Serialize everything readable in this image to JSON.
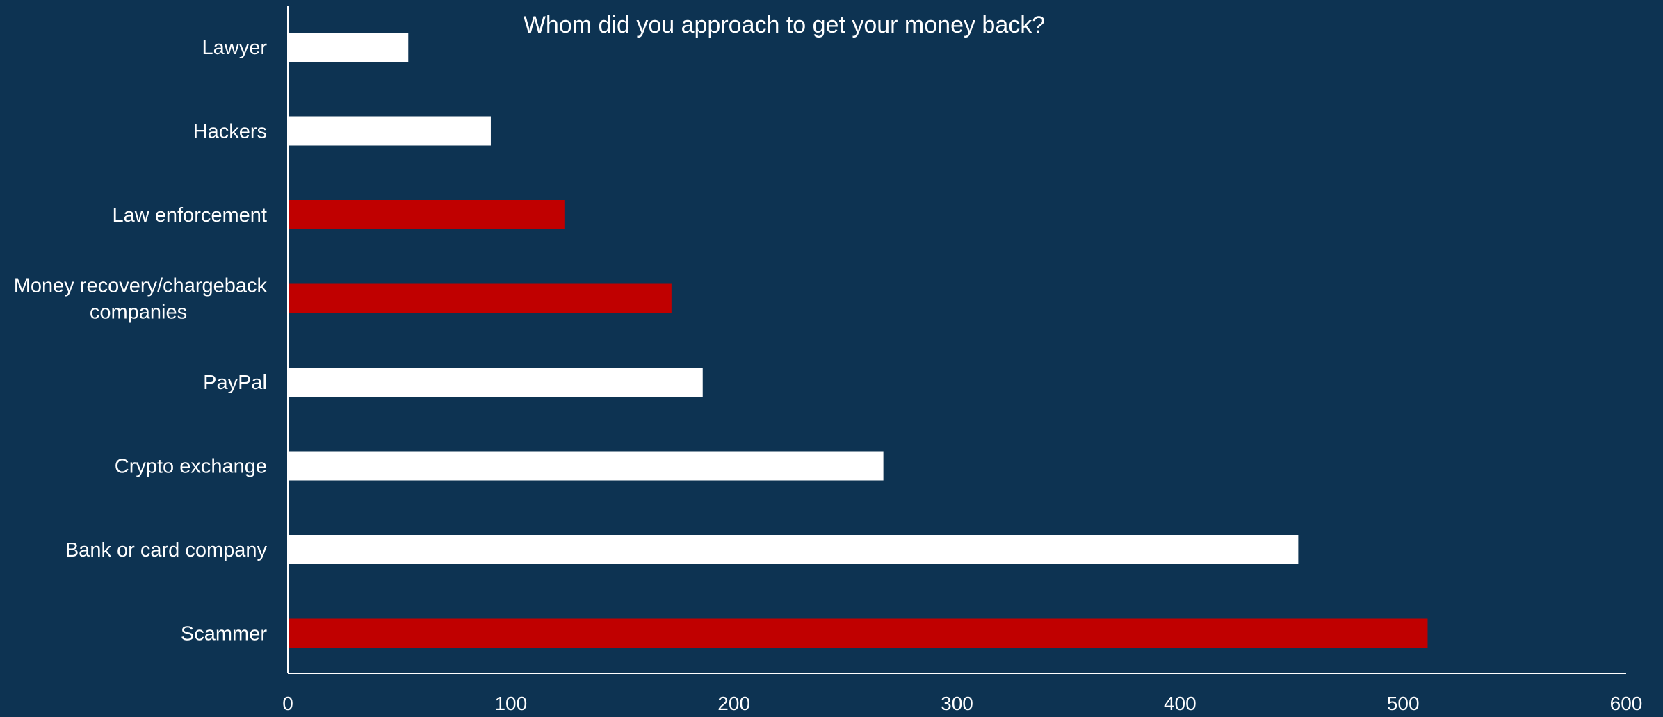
{
  "chart_data": {
    "type": "bar",
    "orientation": "horizontal",
    "title": "Whom did you approach to get your money back?",
    "xlabel": "",
    "ylabel": "",
    "xlim": [
      0,
      600
    ],
    "xticks": [
      "0",
      "100",
      "200",
      "300",
      "400",
      "500",
      "600"
    ],
    "grid": false,
    "legend": "none",
    "background_color": "#0d3352",
    "categories": [
      {
        "label_lines": [
          "Lawyer"
        ],
        "value": 54,
        "color": "#ffffff"
      },
      {
        "label_lines": [
          "Hackers"
        ],
        "value": 91,
        "color": "#ffffff"
      },
      {
        "label_lines": [
          "Law enforcement"
        ],
        "value": 124,
        "color": "#c00000"
      },
      {
        "label_lines": [
          "Money recovery/chargeback",
          "companies"
        ],
        "value": 172,
        "color": "#c00000"
      },
      {
        "label_lines": [
          "PayPal"
        ],
        "value": 186,
        "color": "#ffffff"
      },
      {
        "label_lines": [
          "Crypto exchange"
        ],
        "value": 267,
        "color": "#ffffff"
      },
      {
        "label_lines": [
          "Bank or card company"
        ],
        "value": 453,
        "color": "#ffffff"
      },
      {
        "label_lines": [
          "Scammer"
        ],
        "value": 511,
        "color": "#c00000"
      }
    ]
  }
}
